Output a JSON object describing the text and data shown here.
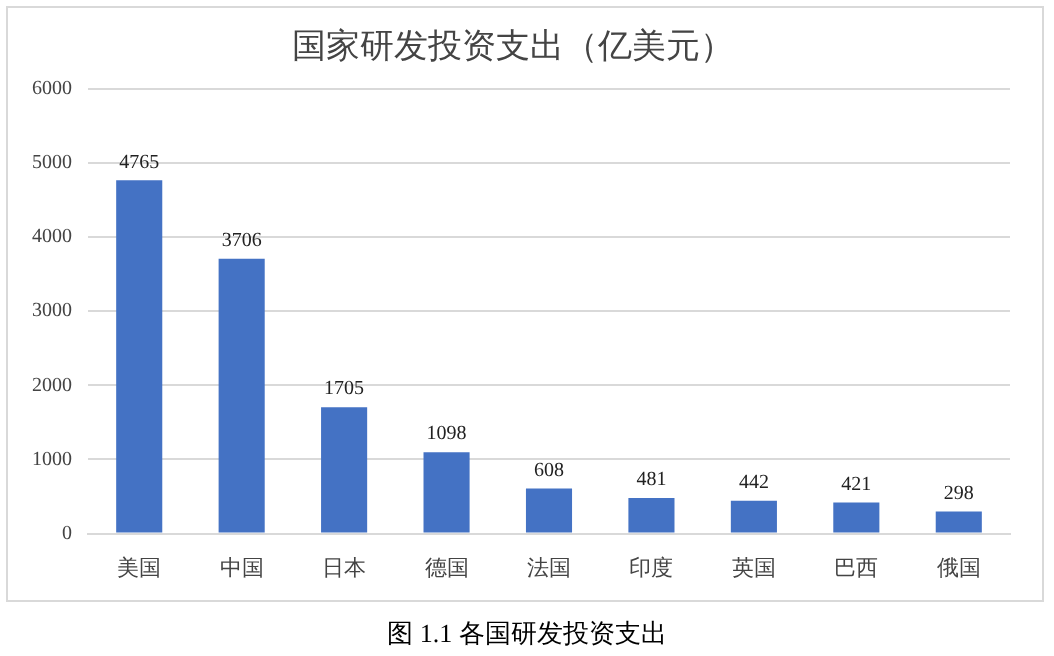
{
  "chart_data": {
    "type": "bar",
    "title": "国家研发投资支出（亿美元）",
    "categories": [
      "美国",
      "中国",
      "日本",
      "德国",
      "法国",
      "印度",
      "英国",
      "巴西",
      "俄国"
    ],
    "values": [
      4765,
      3706,
      1705,
      1098,
      608,
      481,
      442,
      421,
      298
    ],
    "color": "#4472c4",
    "ylim": [
      0,
      6000
    ],
    "yticks": [
      0,
      1000,
      2000,
      3000,
      4000,
      5000,
      6000
    ],
    "grid": "y",
    "legend": false,
    "data_labels": true,
    "annotations": [
      "图 1.1  各国研发投资支出"
    ]
  }
}
